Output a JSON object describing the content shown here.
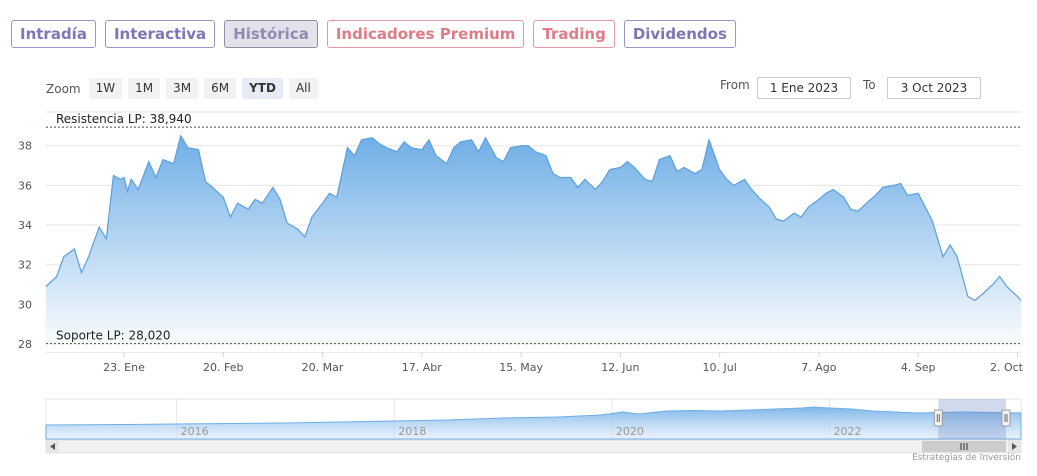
{
  "tabs": [
    {
      "label": "Intradía",
      "style": "normal"
    },
    {
      "label": "Interactiva",
      "style": "normal"
    },
    {
      "label": "Histórica",
      "style": "active"
    },
    {
      "label": "Indicadores Premium",
      "style": "premium"
    },
    {
      "label": "Trading",
      "style": "premium"
    },
    {
      "label": "Dividendos",
      "style": "normal"
    }
  ],
  "zoom": {
    "label": "Zoom",
    "buttons": [
      "1W",
      "1M",
      "3M",
      "6M",
      "YTD",
      "All"
    ],
    "selected": "YTD"
  },
  "range": {
    "from_label": "From",
    "from_value": "1 Ene 2023",
    "to_label": "To",
    "to_value": "3 Oct 2023"
  },
  "credit": "Estrategias de Inversión",
  "colors": {
    "area_top": "#6faee6",
    "area_bottom": "#ffffff",
    "line": "#5b9fdc",
    "level": "#2f5e2f"
  },
  "chart_data": [
    {
      "type": "area",
      "xlabel": "",
      "ylabel": "",
      "ylim": [
        27.6,
        39.7
      ],
      "xlim": [
        "2023-01-01",
        "2023-10-03"
      ],
      "y_ticks": [
        "28",
        "30",
        "32",
        "34",
        "36",
        "38"
      ],
      "x_ticks": [
        {
          "date": "2023-01-23",
          "label": "23. Ene"
        },
        {
          "date": "2023-02-20",
          "label": "20. Feb"
        },
        {
          "date": "2023-03-20",
          "label": "20. Mar"
        },
        {
          "date": "2023-04-17",
          "label": "17. Abr"
        },
        {
          "date": "2023-05-15",
          "label": "15. May"
        },
        {
          "date": "2023-06-12",
          "label": "12. Jun"
        },
        {
          "date": "2023-07-10",
          "label": "10. Jul"
        },
        {
          "date": "2023-08-07",
          "label": "7. Ago"
        },
        {
          "date": "2023-09-04",
          "label": "4. Sep"
        },
        {
          "date": "2023-10-02",
          "label": "2. Oct"
        }
      ],
      "grid": true,
      "levels": [
        {
          "label": "Resistencia LP: 38,940",
          "value": 38.94
        },
        {
          "label": "Soporte LP: 28,020",
          "value": 28.02
        }
      ],
      "series": [
        {
          "x": [
            "2023-01-01",
            "2023-01-04",
            "2023-01-06",
            "2023-01-09",
            "2023-01-11",
            "2023-01-13",
            "2023-01-16",
            "2023-01-18",
            "2023-01-20",
            "2023-01-22",
            "2023-01-23",
            "2023-01-24",
            "2023-01-25",
            "2023-01-27",
            "2023-01-30",
            "2023-02-01",
            "2023-02-03",
            "2023-02-06",
            "2023-02-08",
            "2023-02-10",
            "2023-02-13",
            "2023-02-15",
            "2023-02-17",
            "2023-02-20",
            "2023-02-22",
            "2023-02-24",
            "2023-02-27",
            "2023-03-01",
            "2023-03-03",
            "2023-03-06",
            "2023-03-08",
            "2023-03-10",
            "2023-03-13",
            "2023-03-15",
            "2023-03-17",
            "2023-03-20",
            "2023-03-22",
            "2023-03-24",
            "2023-03-27",
            "2023-03-29",
            "2023-03-31",
            "2023-04-03",
            "2023-04-05",
            "2023-04-07",
            "2023-04-10",
            "2023-04-12",
            "2023-04-14",
            "2023-04-17",
            "2023-04-19",
            "2023-04-21",
            "2023-04-24",
            "2023-04-26",
            "2023-04-28",
            "2023-05-01",
            "2023-05-03",
            "2023-05-05",
            "2023-05-08",
            "2023-05-10",
            "2023-05-12",
            "2023-05-15",
            "2023-05-17",
            "2023-05-19",
            "2023-05-22",
            "2023-05-24",
            "2023-05-26",
            "2023-05-29",
            "2023-05-31",
            "2023-06-02",
            "2023-06-05",
            "2023-06-07",
            "2023-06-09",
            "2023-06-12",
            "2023-06-14",
            "2023-06-16",
            "2023-06-19",
            "2023-06-21",
            "2023-06-23",
            "2023-06-26",
            "2023-06-28",
            "2023-06-30",
            "2023-07-03",
            "2023-07-05",
            "2023-07-07",
            "2023-07-10",
            "2023-07-12",
            "2023-07-14",
            "2023-07-17",
            "2023-07-19",
            "2023-07-21",
            "2023-07-24",
            "2023-07-26",
            "2023-07-28",
            "2023-07-31",
            "2023-08-02",
            "2023-08-04",
            "2023-08-07",
            "2023-08-09",
            "2023-08-11",
            "2023-08-14",
            "2023-08-16",
            "2023-08-18",
            "2023-08-21",
            "2023-08-23",
            "2023-08-25",
            "2023-08-28",
            "2023-08-30",
            "2023-09-01",
            "2023-09-04",
            "2023-09-06",
            "2023-09-08",
            "2023-09-11",
            "2023-09-13",
            "2023-09-15",
            "2023-09-18",
            "2023-09-20",
            "2023-09-22",
            "2023-09-25",
            "2023-09-27",
            "2023-09-29",
            "2023-10-02",
            "2023-10-03"
          ],
          "y": [
            30.9,
            31.4,
            32.4,
            32.8,
            31.6,
            32.4,
            33.9,
            33.3,
            36.5,
            36.3,
            36.4,
            35.7,
            36.3,
            35.8,
            37.2,
            36.4,
            37.3,
            37.1,
            38.5,
            37.9,
            37.8,
            36.2,
            35.9,
            35.4,
            34.4,
            35.1,
            34.8,
            35.3,
            35.1,
            35.9,
            35.3,
            34.1,
            33.8,
            33.4,
            34.4,
            35.1,
            35.6,
            35.4,
            37.9,
            37.5,
            38.3,
            38.4,
            38.1,
            37.9,
            37.7,
            38.2,
            37.9,
            37.8,
            38.3,
            37.5,
            37.1,
            37.9,
            38.2,
            38.3,
            37.7,
            38.4,
            37.4,
            37.2,
            37.9,
            38.0,
            38.0,
            37.7,
            37.5,
            36.6,
            36.4,
            36.4,
            35.9,
            36.3,
            35.8,
            36.2,
            36.8,
            36.9,
            37.2,
            36.9,
            36.3,
            36.2,
            37.3,
            37.5,
            36.7,
            36.9,
            36.6,
            36.8,
            38.3,
            36.8,
            36.3,
            36.0,
            36.3,
            35.8,
            35.4,
            34.9,
            34.3,
            34.2,
            34.6,
            34.4,
            34.9,
            35.3,
            35.6,
            35.8,
            35.4,
            34.8,
            34.7,
            35.2,
            35.5,
            35.9,
            36.0,
            36.1,
            35.5,
            35.6,
            34.9,
            34.2,
            32.4,
            33.0,
            32.4,
            30.4,
            30.2,
            30.5,
            31.0,
            31.4,
            30.9,
            30.4,
            30.2
          ]
        }
      ]
    },
    {
      "type": "area",
      "x_ticks": [
        "2016",
        "2018",
        "2020",
        "2022"
      ],
      "xlim": [
        2014.8,
        2023.76
      ],
      "ylim": [
        0,
        40
      ],
      "selected_range": [
        2023.0,
        2023.76
      ],
      "series": [
        {
          "x": [
            2014.8,
            2015.5,
            2016.0,
            2016.5,
            2017.0,
            2017.5,
            2018.0,
            2018.5,
            2019.0,
            2019.5,
            2019.9,
            2020.1,
            2020.25,
            2020.5,
            2020.75,
            2021.0,
            2021.25,
            2021.5,
            2021.75,
            2021.85,
            2022.0,
            2022.2,
            2022.4,
            2022.6,
            2022.8,
            2023.0,
            2023.2,
            2023.5,
            2023.76
          ],
          "y": [
            14,
            14.5,
            15,
            15.5,
            16,
            17,
            18,
            19,
            21,
            22,
            24,
            27,
            25,
            28,
            28.5,
            28,
            29,
            30,
            31,
            32,
            31,
            30,
            28,
            27,
            26,
            26.5,
            27,
            26.5,
            26
          ]
        }
      ]
    }
  ]
}
